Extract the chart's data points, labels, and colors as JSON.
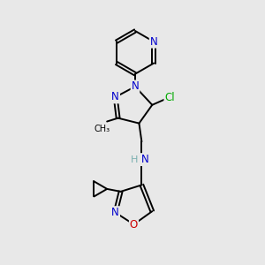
{
  "background_color": "#e8e8e8",
  "bond_color": "#000000",
  "atom_colors": {
    "N": "#0000cc",
    "O": "#cc0000",
    "Cl": "#00aa00",
    "C": "#000000",
    "H": "#7ab0b0"
  },
  "figsize": [
    3.0,
    3.0
  ],
  "dpi": 100,
  "lw": 1.4,
  "fs": 8.5
}
